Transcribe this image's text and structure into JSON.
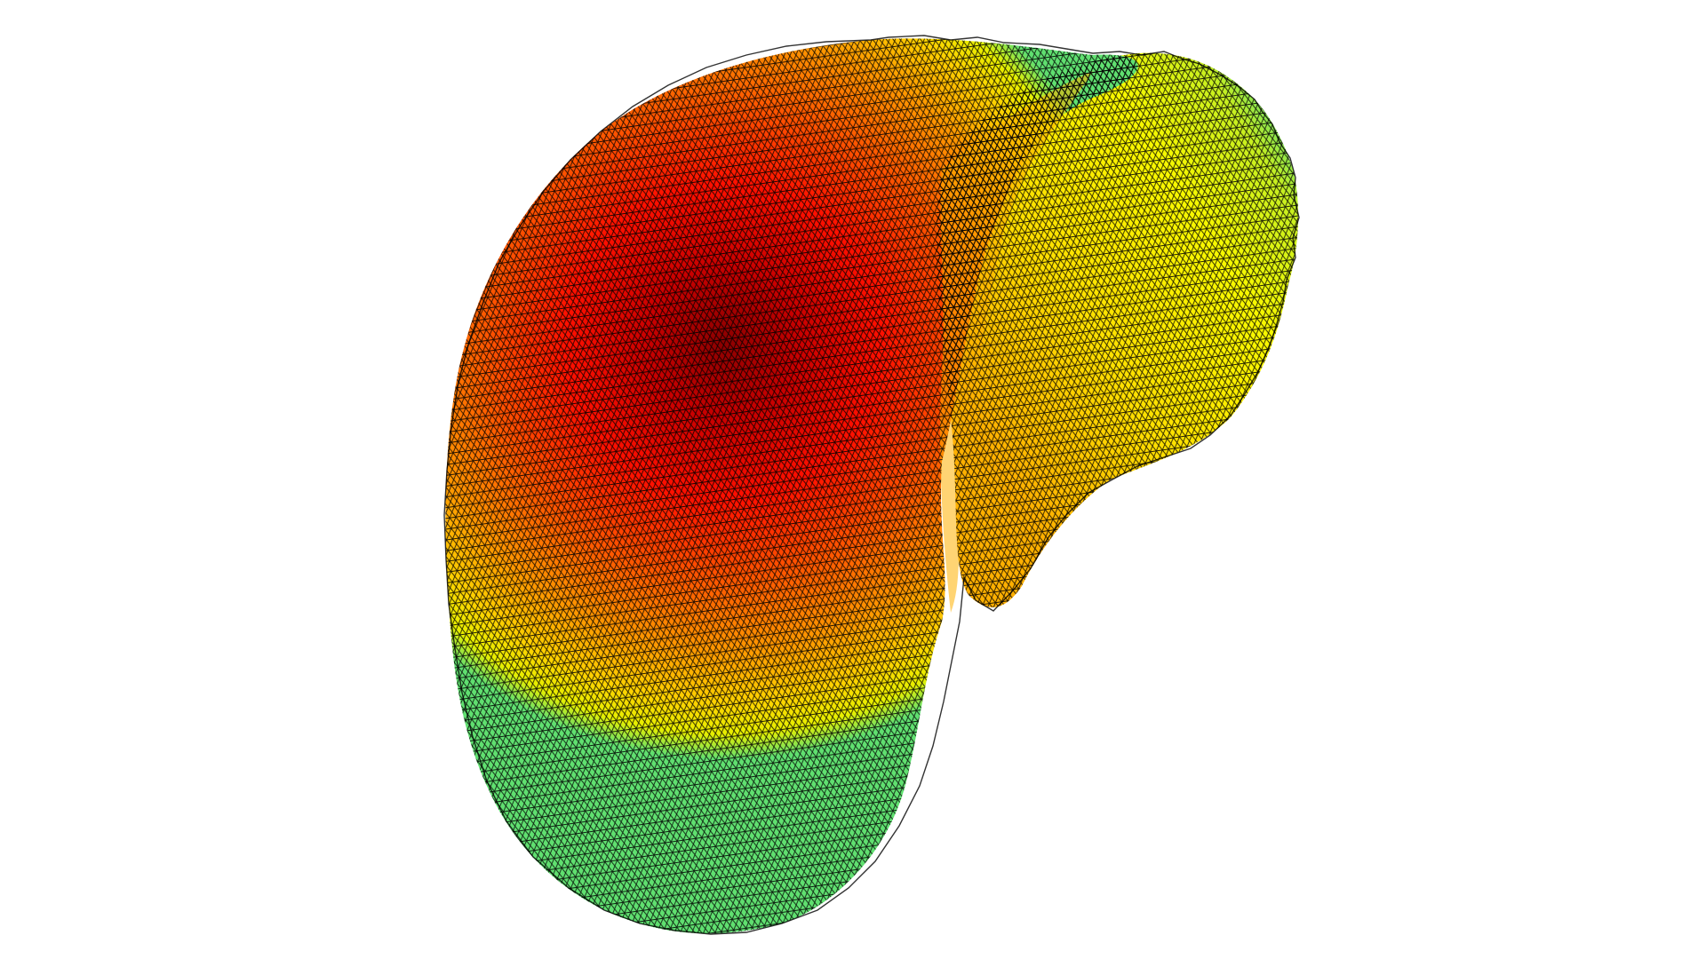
{
  "scene": {
    "description_name": "triangulated-surface-heatmap",
    "background_color": "#ffffff",
    "colormap": {
      "stops": [
        "#8b0000",
        "#d00000",
        "#ff2000",
        "#ff6a00",
        "#ffa000",
        "#ffd800",
        "#ffff00",
        "#b8f000",
        "#5fe060",
        "#30c0a0"
      ]
    },
    "wireframe_color": "#000000"
  }
}
